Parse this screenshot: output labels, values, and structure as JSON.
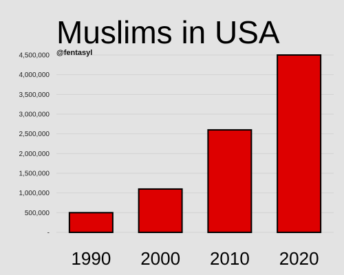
{
  "header": {
    "title": "Muslims in USA",
    "handle": "@fentasyl"
  },
  "colors": {
    "background": "#e3e3e3",
    "bar": "#dd0000",
    "bar_outline": "#000000"
  },
  "chart_data": {
    "type": "bar",
    "title": "Muslims in USA",
    "xlabel": "",
    "ylabel": "",
    "categories": [
      "1990",
      "2000",
      "2010",
      "2020"
    ],
    "values": [
      500000,
      1100000,
      2600000,
      4500000
    ],
    "ylim": [
      0,
      4500000
    ],
    "yticks": [
      0,
      500000,
      1000000,
      1500000,
      2000000,
      2500000,
      3000000,
      3500000,
      4000000,
      4500000
    ],
    "ytick_labels": [
      "-",
      "500,000",
      "1,000,000",
      "1,500,000",
      "2,000,000",
      "2,500,000",
      "3,000,000",
      "3,500,000",
      "4,000,000",
      "4,500,000"
    ],
    "grid": true,
    "legend": "none"
  }
}
